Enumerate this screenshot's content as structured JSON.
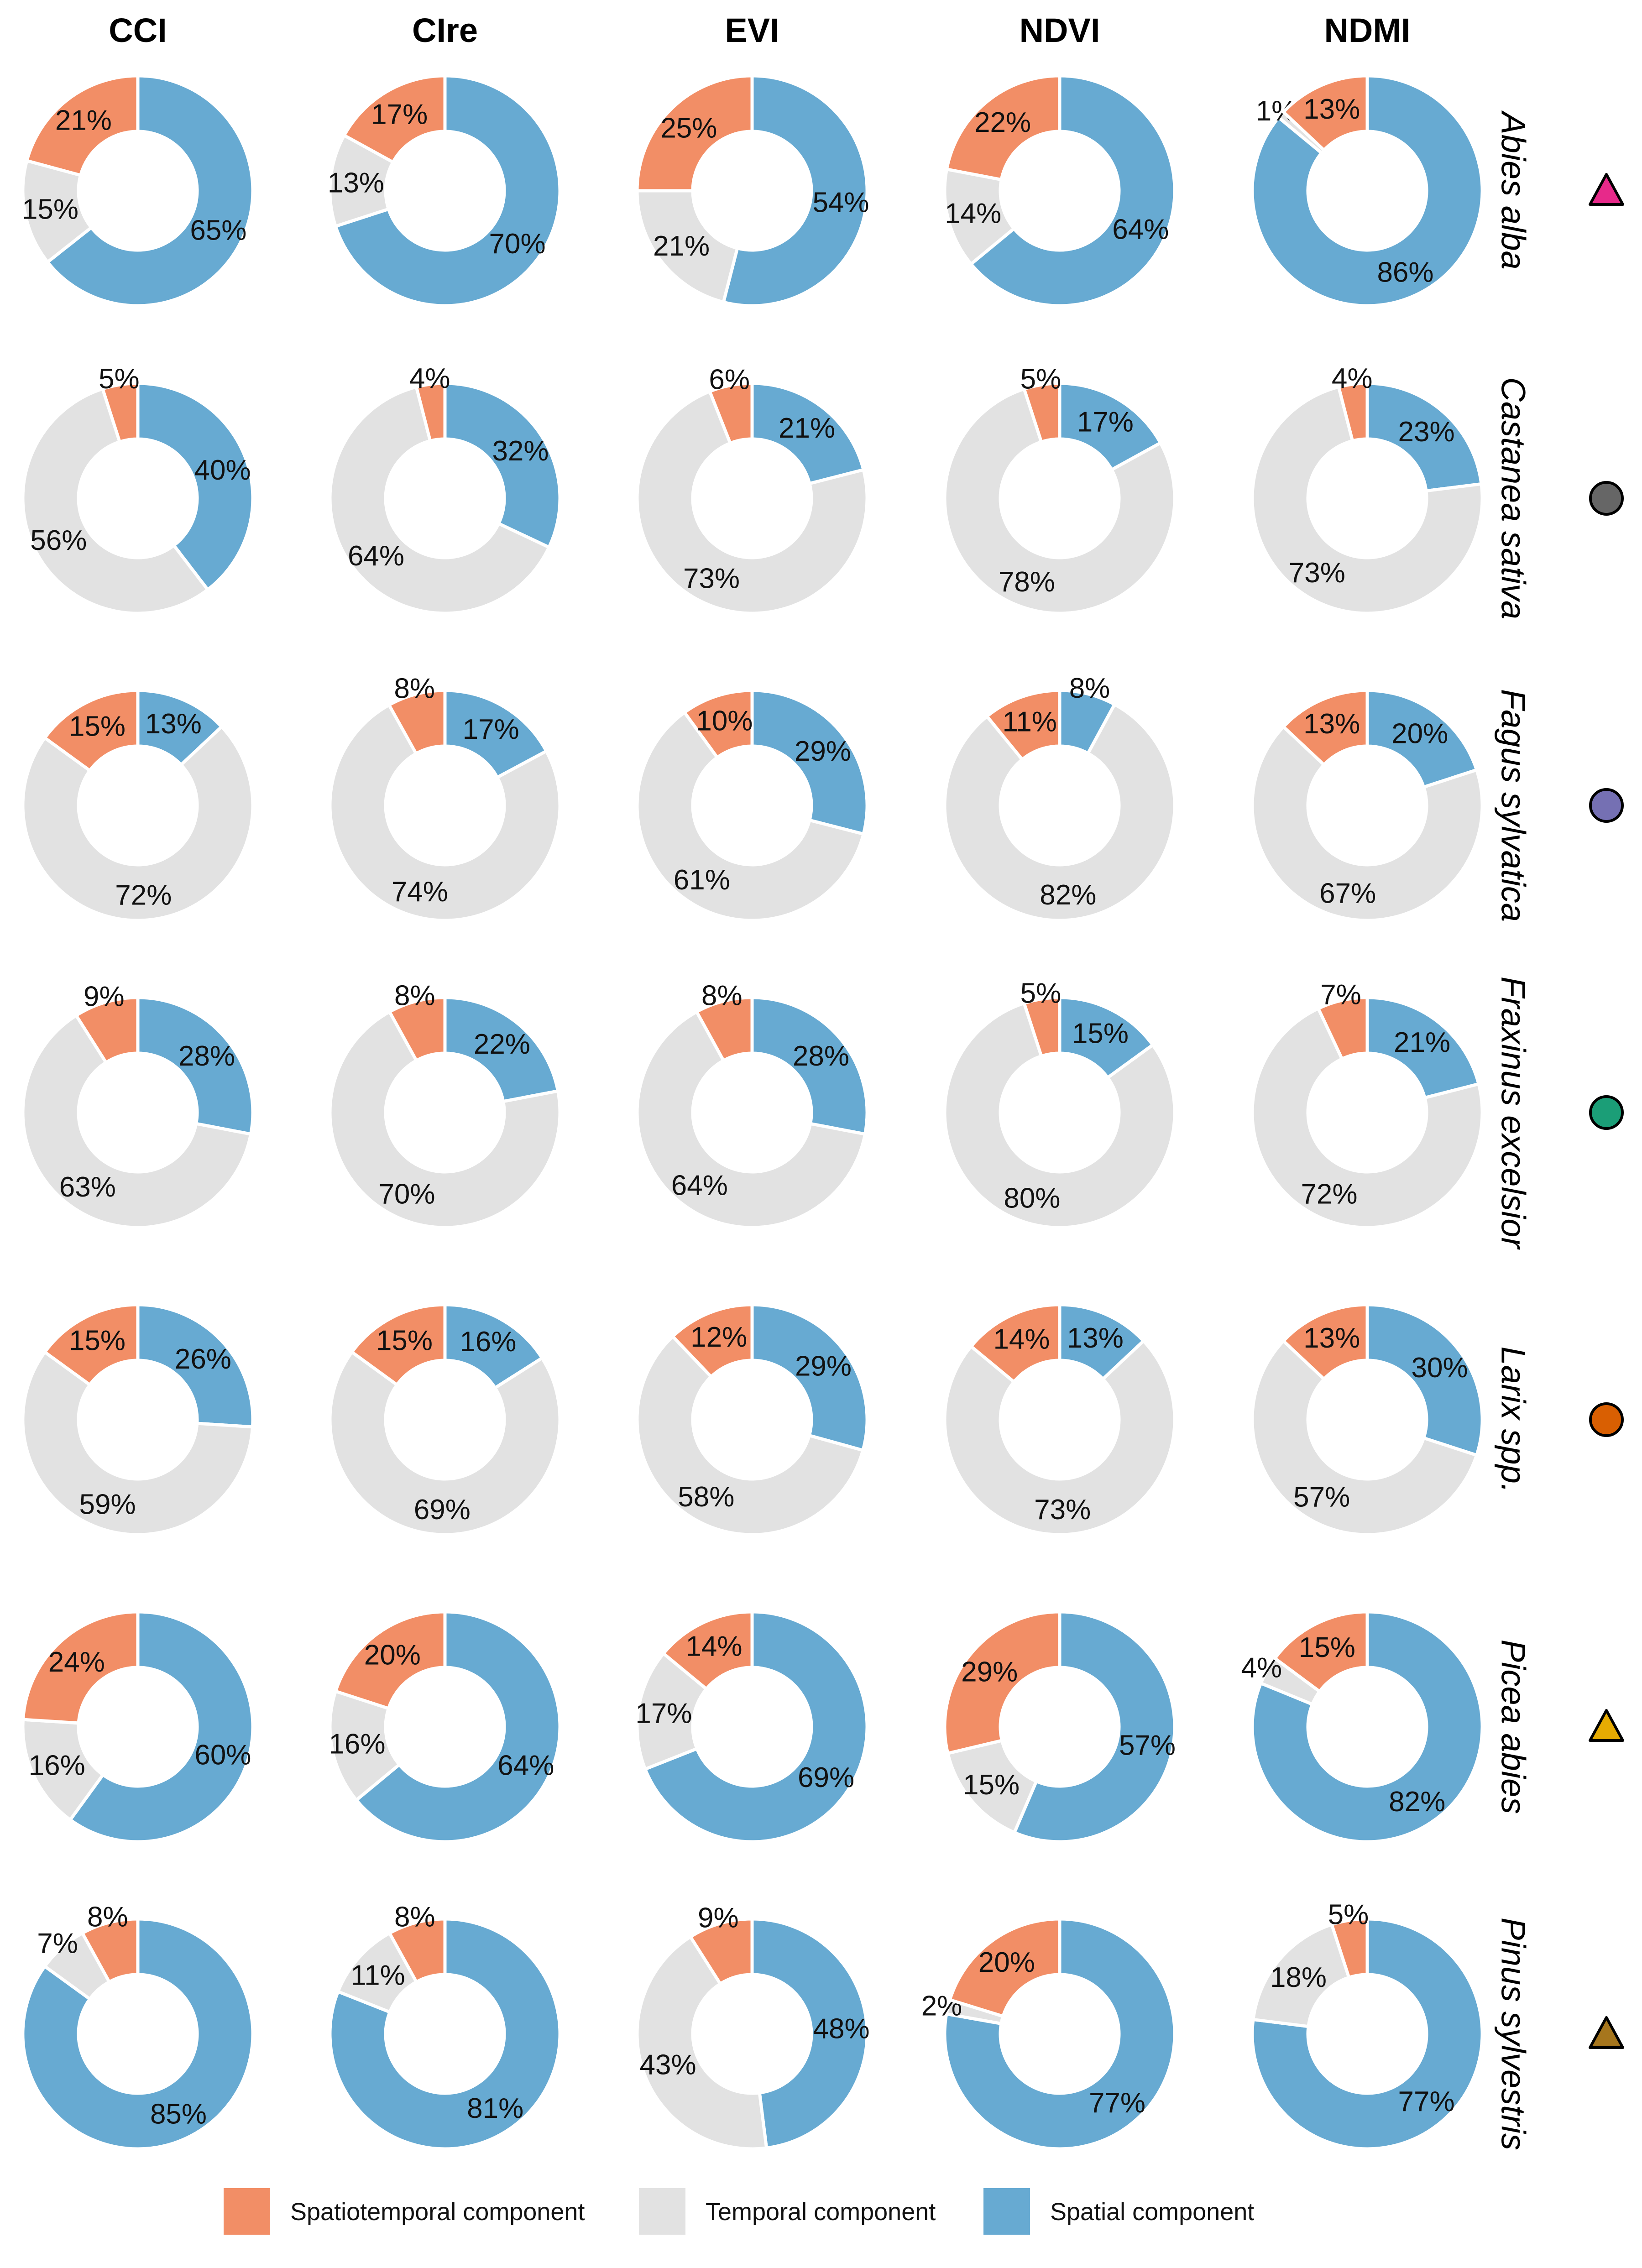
{
  "chart_data": {
    "type": "donut-grid",
    "columns": [
      "CCI",
      "CIre",
      "EVI",
      "NDVI",
      "NDMI"
    ],
    "rows": [
      {
        "species": "Abies alba",
        "marker": {
          "shape": "triangle",
          "color": "#e7298a"
        },
        "values": [
          [
            21,
            15,
            65
          ],
          [
            17,
            13,
            70
          ],
          [
            25,
            21,
            54
          ],
          [
            22,
            14,
            64
          ],
          [
            13,
            1,
            86
          ]
        ]
      },
      {
        "species": "Castanea sativa",
        "marker": {
          "shape": "circle",
          "color": "#666666"
        },
        "values": [
          [
            5,
            56,
            40
          ],
          [
            4,
            64,
            32
          ],
          [
            6,
            73,
            21
          ],
          [
            5,
            78,
            17
          ],
          [
            4,
            73,
            23
          ]
        ]
      },
      {
        "species": "Fagus sylvatica",
        "marker": {
          "shape": "circle",
          "color": "#7570b3"
        },
        "values": [
          [
            15,
            72,
            13
          ],
          [
            8,
            74,
            17
          ],
          [
            10,
            61,
            29
          ],
          [
            11,
            82,
            8
          ],
          [
            13,
            67,
            20
          ]
        ]
      },
      {
        "species": "Fraxinus excelsior",
        "marker": {
          "shape": "circle",
          "color": "#1b9e77"
        },
        "values": [
          [
            9,
            63,
            28
          ],
          [
            8,
            70,
            22
          ],
          [
            8,
            64,
            28
          ],
          [
            5,
            80,
            15
          ],
          [
            7,
            72,
            21
          ]
        ]
      },
      {
        "species": "Larix spp.",
        "marker": {
          "shape": "circle",
          "color": "#d95f02"
        },
        "values": [
          [
            15,
            59,
            26
          ],
          [
            15,
            69,
            16
          ],
          [
            12,
            58,
            29
          ],
          [
            14,
            73,
            13
          ],
          [
            13,
            57,
            30
          ]
        ]
      },
      {
        "species": "Picea abies",
        "marker": {
          "shape": "triangle",
          "color": "#e6ab02"
        },
        "values": [
          [
            24,
            16,
            60
          ],
          [
            20,
            16,
            64
          ],
          [
            14,
            17,
            69
          ],
          [
            29,
            15,
            57
          ],
          [
            15,
            4,
            82
          ]
        ]
      },
      {
        "species": "Pinus sylvestris",
        "marker": {
          "shape": "triangle",
          "color": "#a6761d"
        },
        "values": [
          [
            8,
            7,
            85
          ],
          [
            8,
            11,
            81
          ],
          [
            9,
            43,
            48
          ],
          [
            20,
            2,
            77
          ],
          [
            5,
            18,
            77
          ]
        ]
      }
    ],
    "components": [
      {
        "name": "Spatiotemporal component",
        "color": "#f28e66"
      },
      {
        "name": "Temporal component",
        "color": "#e2e2e2"
      },
      {
        "name": "Spatial component",
        "color": "#67aad2"
      }
    ],
    "value_suffix": "%"
  }
}
